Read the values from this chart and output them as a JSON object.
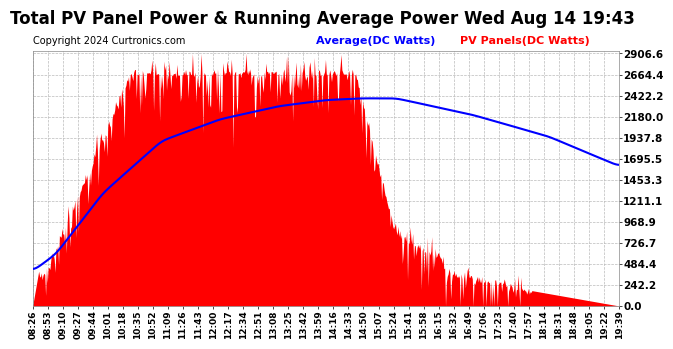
{
  "title": "Total PV Panel Power & Running Average Power Wed Aug 14 19:43",
  "copyright": "Copyright 2024 Curtronics.com",
  "legend_avg": "Average(DC Watts)",
  "legend_pv": "PV Panels(DC Watts)",
  "yticks": [
    0.0,
    242.2,
    484.4,
    726.7,
    968.9,
    1211.1,
    1453.3,
    1695.5,
    1937.8,
    2180.0,
    2422.2,
    2664.4,
    2906.6
  ],
  "ymax": 2906.6,
  "ymin": 0.0,
  "bar_color": "#FF0000",
  "avg_color": "#0000FF",
  "bg_color": "#FFFFFF",
  "grid_color": "#BBBBBB",
  "title_fontsize": 12,
  "copyright_fontsize": 7,
  "tick_fontsize": 6.5,
  "ytick_fontsize": 7.5,
  "xtick_labels": [
    "08:26",
    "08:53",
    "09:10",
    "09:27",
    "09:44",
    "10:01",
    "10:18",
    "10:35",
    "10:52",
    "11:09",
    "11:26",
    "11:43",
    "12:00",
    "12:17",
    "12:34",
    "12:51",
    "13:08",
    "13:25",
    "13:42",
    "13:59",
    "14:16",
    "14:33",
    "14:50",
    "15:07",
    "15:24",
    "15:41",
    "15:58",
    "16:15",
    "16:32",
    "16:49",
    "17:06",
    "17:23",
    "17:40",
    "17:57",
    "18:14",
    "18:31",
    "18:48",
    "19:05",
    "19:22",
    "19:39"
  ],
  "avg_keypoints_t": [
    0.0,
    0.04,
    0.12,
    0.22,
    0.32,
    0.42,
    0.5,
    0.56,
    0.62,
    0.75,
    0.88,
    1.0
  ],
  "avg_keypoints_v": [
    400,
    600,
    1300,
    1900,
    2150,
    2300,
    2370,
    2390,
    2390,
    2200,
    1950,
    1610
  ]
}
